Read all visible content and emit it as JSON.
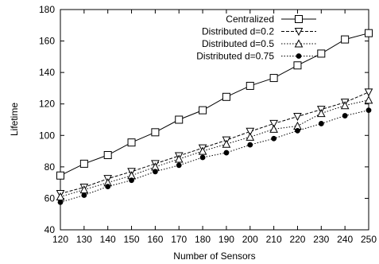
{
  "chart_data": {
    "type": "line",
    "title": "",
    "xlabel": "Number of Sensors",
    "ylabel": "Lifetime",
    "xlim": [
      120,
      250
    ],
    "ylim": [
      40,
      180
    ],
    "grid": false,
    "legend_position": "top-right",
    "x": [
      120,
      130,
      140,
      150,
      160,
      170,
      180,
      190,
      200,
      210,
      220,
      230,
      240,
      250
    ],
    "xticks": [
      "120",
      "130",
      "140",
      "150",
      "160",
      "170",
      "180",
      "190",
      "200",
      "210",
      "220",
      "230",
      "240",
      "250"
    ],
    "yticks": [
      "40",
      "60",
      "80",
      "100",
      "120",
      "140",
      "160",
      "180"
    ],
    "series": [
      {
        "name": "Centralized",
        "marker": "square",
        "line": "solid",
        "values": [
          74.5,
          82,
          87.5,
          95.5,
          102,
          110,
          116,
          124.5,
          131.5,
          136.5,
          144.5,
          152,
          161,
          165
        ]
      },
      {
        "name": "Distributed d=0.2",
        "marker": "triangle-down",
        "line": "dashed",
        "values": [
          63,
          67,
          72.5,
          77,
          82,
          87,
          92,
          97,
          102.5,
          107.5,
          112,
          116.5,
          121,
          127.5
        ]
      },
      {
        "name": "Distributed d=0.5",
        "marker": "triangle-up",
        "line": "dotted",
        "values": [
          61,
          65.5,
          70,
          74.5,
          80,
          85,
          90,
          94.5,
          99,
          104,
          106,
          114,
          119,
          122.5
        ]
      },
      {
        "name": "Distributed d=0.75",
        "marker": "circle-filled",
        "line": "dotted",
        "values": [
          57.5,
          62,
          67.5,
          71.5,
          77,
          81,
          86,
          89,
          94,
          98,
          103,
          107.5,
          112.5,
          116
        ]
      }
    ]
  }
}
